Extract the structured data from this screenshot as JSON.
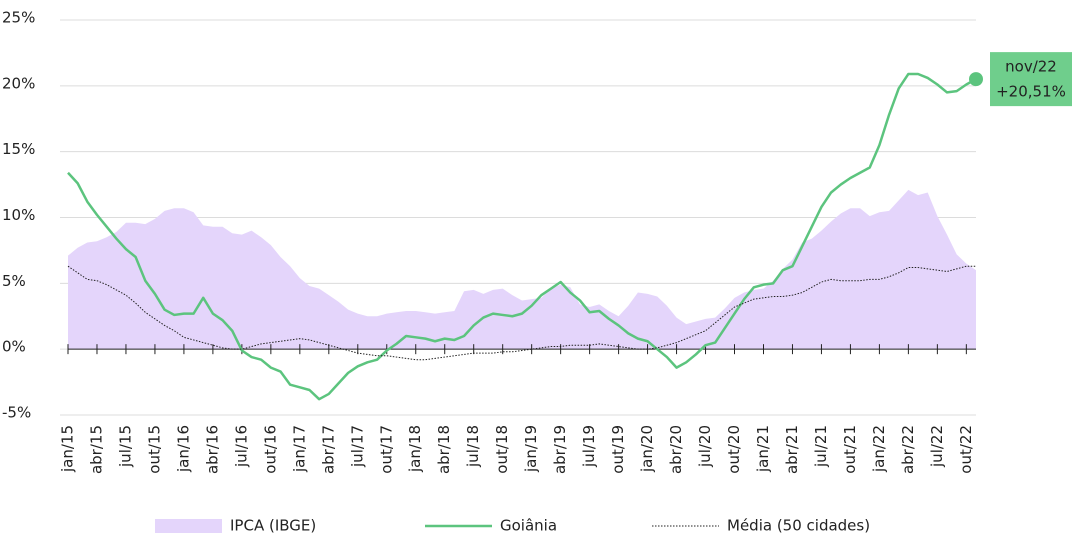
{
  "chart_data": {
    "type": "line",
    "categories": [
      "jan/15",
      null,
      null,
      "abr/15",
      null,
      null,
      "jul/15",
      null,
      null,
      "out/15",
      null,
      null,
      "jan/16",
      null,
      null,
      "abr/16",
      null,
      null,
      "jul/16",
      null,
      null,
      "out/16",
      null,
      null,
      "jan/17",
      null,
      null,
      "abr/17",
      null,
      null,
      "jul/17",
      null,
      null,
      "out/17",
      null,
      null,
      "jan/18",
      null,
      null,
      "abr/18",
      null,
      null,
      "jul/18",
      null,
      null,
      "out/18",
      null,
      null,
      "jan/19",
      null,
      null,
      "abr/19",
      null,
      null,
      "jul/19",
      null,
      null,
      "out/19",
      null,
      null,
      "jan/20",
      null,
      null,
      "abr/20",
      null,
      null,
      "jul/20",
      null,
      null,
      "out/20",
      null,
      null,
      "jan/21",
      null,
      null,
      "abr/21",
      null,
      null,
      "jul/21",
      null,
      null,
      "out/21",
      null,
      null,
      "jan/22",
      null,
      null,
      "abr/22",
      null,
      null,
      "jul/22",
      null,
      null,
      "out/22",
      null
    ],
    "series": [
      {
        "name": "IPCA (IBGE)",
        "style": "area",
        "color": "#e4d5fb",
        "values": [
          7.1,
          7.7,
          8.1,
          8.2,
          8.5,
          8.9,
          9.6,
          9.6,
          9.5,
          9.9,
          10.5,
          10.7,
          10.7,
          10.4,
          9.4,
          9.3,
          9.3,
          8.8,
          8.7,
          9.0,
          8.5,
          7.9,
          7.0,
          6.3,
          5.4,
          4.8,
          4.6,
          4.1,
          3.6,
          3.0,
          2.7,
          2.5,
          2.5,
          2.7,
          2.8,
          2.9,
          2.9,
          2.8,
          2.7,
          2.8,
          2.9,
          4.4,
          4.5,
          4.2,
          4.5,
          4.6,
          4.1,
          3.7,
          3.8,
          3.9,
          4.6,
          4.9,
          4.7,
          3.4,
          3.2,
          3.4,
          2.9,
          2.5,
          3.3,
          4.3,
          4.2,
          4.0,
          3.3,
          2.4,
          1.9,
          2.1,
          2.3,
          2.4,
          3.1,
          3.9,
          4.3,
          4.5,
          4.6,
          5.2,
          6.1,
          6.8,
          8.1,
          8.4,
          9.0,
          9.7,
          10.3,
          10.7,
          10.7,
          10.1,
          10.4,
          10.5,
          11.3,
          12.1,
          11.7,
          11.9,
          10.1,
          8.7,
          7.2,
          6.5,
          6.0
        ]
      },
      {
        "name": "Goiânia",
        "style": "solid",
        "color": "#5cc47e",
        "values": [
          13.4,
          12.6,
          11.2,
          10.2,
          9.3,
          8.4,
          7.6,
          7.0,
          5.2,
          4.2,
          3.0,
          2.6,
          2.7,
          2.7,
          3.9,
          2.7,
          2.2,
          1.4,
          -0.1,
          -0.6,
          -0.8,
          -1.4,
          -1.7,
          -2.7,
          -2.9,
          -3.1,
          -3.8,
          -3.4,
          -2.6,
          -1.8,
          -1.3,
          -1.0,
          -0.8,
          -0.1,
          0.4,
          1.0,
          0.9,
          0.8,
          0.6,
          0.8,
          0.7,
          1.0,
          1.8,
          2.4,
          2.7,
          2.6,
          2.5,
          2.7,
          3.3,
          4.1,
          4.6,
          5.1,
          4.3,
          3.7,
          2.8,
          2.9,
          2.3,
          1.8,
          1.2,
          0.8,
          0.6,
          0.0,
          -0.6,
          -1.4,
          -1.0,
          -0.4,
          0.3,
          0.5,
          1.6,
          2.7,
          3.8,
          4.7,
          4.9,
          5.0,
          6.0,
          6.3,
          7.8,
          9.3,
          10.8,
          11.9,
          12.5,
          13.0,
          13.4,
          13.8,
          15.5,
          17.8,
          19.8,
          20.9,
          20.9,
          20.6,
          20.1,
          19.5,
          19.6,
          20.1,
          20.51
        ]
      },
      {
        "name": "Média (50 cidades)",
        "style": "dotted",
        "color": "#222222",
        "values": [
          6.3,
          5.8,
          5.3,
          5.2,
          4.9,
          4.5,
          4.1,
          3.5,
          2.8,
          2.3,
          1.8,
          1.4,
          0.9,
          0.7,
          0.5,
          0.3,
          0.1,
          0.0,
          0.0,
          0.2,
          0.4,
          0.5,
          0.6,
          0.7,
          0.8,
          0.7,
          0.5,
          0.3,
          0.1,
          -0.1,
          -0.3,
          -0.4,
          -0.5,
          -0.5,
          -0.6,
          -0.7,
          -0.8,
          -0.8,
          -0.7,
          -0.6,
          -0.5,
          -0.4,
          -0.3,
          -0.3,
          -0.3,
          -0.2,
          -0.2,
          -0.1,
          0.0,
          0.1,
          0.2,
          0.2,
          0.3,
          0.3,
          0.3,
          0.4,
          0.3,
          0.2,
          0.1,
          0.0,
          0.0,
          0.1,
          0.3,
          0.5,
          0.8,
          1.1,
          1.4,
          2.0,
          2.6,
          3.2,
          3.5,
          3.8,
          3.9,
          4.0,
          4.0,
          4.1,
          4.3,
          4.7,
          5.1,
          5.3,
          5.2,
          5.2,
          5.2,
          5.3,
          5.3,
          5.5,
          5.8,
          6.2,
          6.2,
          6.1,
          6.0,
          5.9,
          6.1,
          6.3,
          6.3
        ]
      }
    ],
    "annotation": {
      "lines": [
        "nov/22",
        "+20,51%"
      ],
      "color": "#6fce8c"
    },
    "ylim": [
      -5,
      25
    ],
    "yticks": [
      {
        "value": -5,
        "label": "-5%"
      },
      {
        "value": 0,
        "label": "0%"
      },
      {
        "value": 5,
        "label": "5%"
      },
      {
        "value": 10,
        "label": "10%"
      },
      {
        "value": 15,
        "label": "15%"
      },
      {
        "value": 20,
        "label": "20%"
      },
      {
        "value": 25,
        "label": "25%"
      }
    ],
    "grid": true,
    "legend": "bottom"
  }
}
